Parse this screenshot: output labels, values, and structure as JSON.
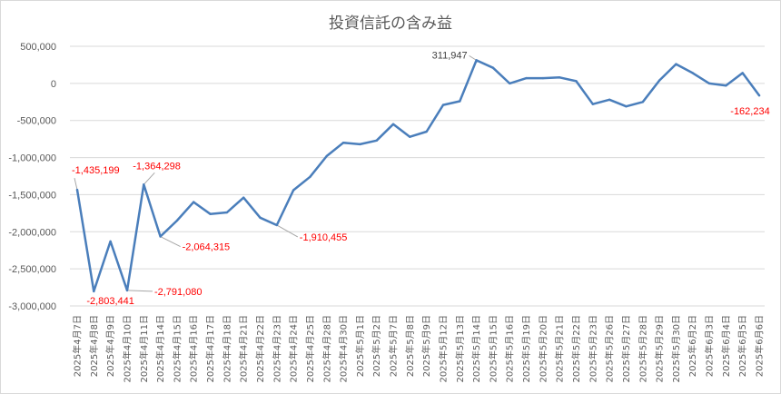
{
  "chart_data": {
    "type": "line",
    "title": "投資信託の含み益",
    "xlabel": "",
    "ylabel": "",
    "ylim": [
      -3000000,
      500000
    ],
    "yticks": [
      500000,
      0,
      -500000,
      -1000000,
      -1500000,
      -2000000,
      -2500000,
      -3000000
    ],
    "ytick_labels": [
      "500,000",
      "0",
      "-500,000",
      "-1,000,000",
      "-1,500,000",
      "-2,000,000",
      "-2,500,000",
      "-3,000,000"
    ],
    "grid": true,
    "legend": "none",
    "colors": {
      "series": "#4a7ebb",
      "negative_label": "#ff0000",
      "positive_label": "#404040",
      "grid": "#d9d9d9"
    },
    "categories": [
      "2025年4月7日",
      "2025年4月8日",
      "2025年4月9日",
      "2025年4月10日",
      "2025年4月11日",
      "2025年4月14日",
      "2025年4月15日",
      "2025年4月16日",
      "2025年4月17日",
      "2025年4月18日",
      "2025年4月21日",
      "2025年4月22日",
      "2025年4月23日",
      "2025年4月24日",
      "2025年4月25日",
      "2025年4月28日",
      "2025年4月30日",
      "2025年5月1日",
      "2025年5月2日",
      "2025年5月7日",
      "2025年5月8日",
      "2025年5月9日",
      "2025年5月12日",
      "2025年5月13日",
      "2025年5月14日",
      "2025年5月15日",
      "2025年5月16日",
      "2025年5月19日",
      "2025年5月20日",
      "2025年5月21日",
      "2025年5月22日",
      "2025年5月23日",
      "2025年5月26日",
      "2025年5月27日",
      "2025年5月28日",
      "2025年5月29日",
      "2025年5月30日",
      "2025年6月2日",
      "2025年6月3日",
      "2025年6月4日",
      "2025年6月5日",
      "2025年6月6日"
    ],
    "series": [
      {
        "values": [
          -1435199,
          -2803441,
          -2130000,
          -2791080,
          -1364298,
          -2064315,
          -1850000,
          -1600000,
          -1760000,
          -1740000,
          -1540000,
          -1810000,
          -1910455,
          -1440000,
          -1260000,
          -980000,
          -800000,
          -820000,
          -770000,
          -550000,
          -720000,
          -650000,
          -290000,
          -240000,
          311947,
          210000,
          0,
          70000,
          70000,
          80000,
          30000,
          -280000,
          -220000,
          -310000,
          -250000,
          40000,
          260000,
          140000,
          0,
          -30000,
          140000,
          -162234
        ]
      }
    ],
    "data_labels": [
      {
        "index": 0,
        "text": "-1,435,199"
      },
      {
        "index": 1,
        "text": "-2,803,441"
      },
      {
        "index": 3,
        "text": "-2,791,080"
      },
      {
        "index": 4,
        "text": "-1,364,298"
      },
      {
        "index": 5,
        "text": "-2,064,315"
      },
      {
        "index": 12,
        "text": "-1,910,455"
      },
      {
        "index": 24,
        "text": "311,947"
      },
      {
        "index": 41,
        "text": "-162,234"
      }
    ]
  }
}
